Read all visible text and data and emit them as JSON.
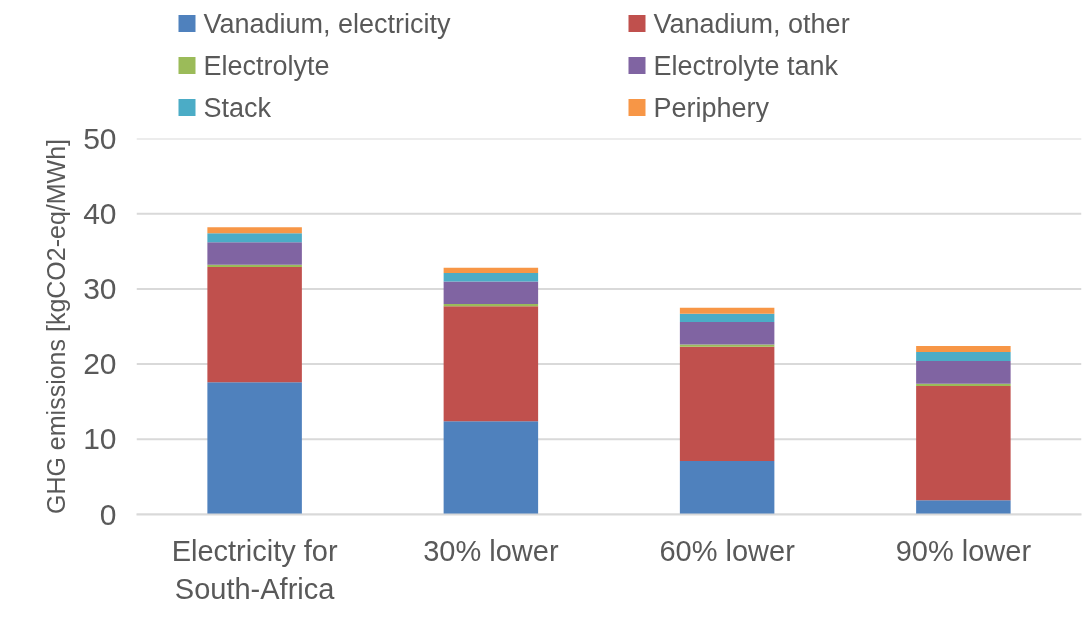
{
  "chart_data": {
    "type": "bar",
    "stacked": true,
    "categories": [
      "Electricity for South-Africa",
      "30% lower",
      "60% lower",
      "90% lower"
    ],
    "ylabel": "GHG emissions [kgCO2-eq/MWh]",
    "ylim": [
      0,
      50
    ],
    "yticks": [
      0,
      10,
      20,
      30,
      40,
      50
    ],
    "grid": "y",
    "legend": "top",
    "series": [
      {
        "name": "Vanadium, electricity",
        "color": "#4f81bd",
        "values": [
          17.6,
          12.4,
          7.1,
          1.9
        ]
      },
      {
        "name": "Vanadium, other",
        "color": "#c0504d",
        "values": [
          15.3,
          15.3,
          15.2,
          15.2
        ]
      },
      {
        "name": "Electrolyte",
        "color": "#9bbb59",
        "values": [
          0.3,
          0.3,
          0.3,
          0.3
        ]
      },
      {
        "name": "Electrolyte tank",
        "color": "#8064a2",
        "values": [
          3.0,
          3.0,
          3.0,
          3.0
        ]
      },
      {
        "name": "Stack",
        "color": "#4bacc6",
        "values": [
          1.2,
          1.1,
          1.1,
          1.2
        ]
      },
      {
        "name": "Periphery",
        "color": "#f79646",
        "values": [
          0.8,
          0.7,
          0.8,
          0.8
        ]
      }
    ]
  }
}
